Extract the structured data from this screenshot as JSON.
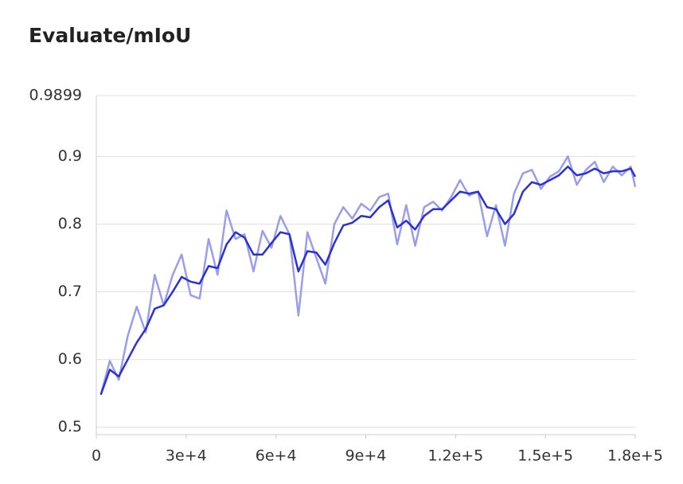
{
  "chart_data": {
    "type": "line",
    "title": "Evaluate/mIoU",
    "x": [
      1500,
      4500,
      7500,
      10500,
      13500,
      16500,
      19500,
      22500,
      25500,
      28500,
      31500,
      34500,
      37500,
      40500,
      43500,
      46500,
      49500,
      52500,
      55500,
      58500,
      61500,
      64500,
      67500,
      70500,
      73500,
      76500,
      79500,
      82500,
      85500,
      88500,
      91500,
      94500,
      97500,
      100500,
      103500,
      106500,
      109500,
      112500,
      115500,
      118500,
      121500,
      124500,
      127500,
      130500,
      133500,
      136500,
      139500,
      142500,
      145500,
      148500,
      151500,
      154500,
      157500,
      160500,
      163500,
      166500,
      169500,
      172500,
      175500,
      178500,
      180000
    ],
    "series": [
      {
        "color": "#9b9de9",
        "values": [
          0.548,
          0.598,
          0.57,
          0.635,
          0.678,
          0.64,
          0.725,
          0.68,
          0.725,
          0.755,
          0.695,
          0.69,
          0.778,
          0.725,
          0.82,
          0.778,
          0.785,
          0.73,
          0.79,
          0.765,
          0.812,
          0.785,
          0.665,
          0.788,
          0.75,
          0.712,
          0.8,
          0.825,
          0.808,
          0.83,
          0.82,
          0.84,
          0.845,
          0.77,
          0.828,
          0.768,
          0.825,
          0.833,
          0.82,
          0.84,
          0.865,
          0.842,
          0.848,
          0.782,
          0.828,
          0.768,
          0.845,
          0.875,
          0.88,
          0.852,
          0.87,
          0.878,
          0.9,
          0.858,
          0.88,
          0.892,
          0.862,
          0.885,
          0.872,
          0.885,
          0.855
        ]
      },
      {
        "color": "#2a32d6",
        "values": [
          0.548,
          0.585,
          0.575,
          0.6,
          0.625,
          0.645,
          0.675,
          0.68,
          0.7,
          0.722,
          0.715,
          0.712,
          0.738,
          0.735,
          0.77,
          0.788,
          0.78,
          0.755,
          0.755,
          0.772,
          0.788,
          0.785,
          0.73,
          0.76,
          0.758,
          0.74,
          0.772,
          0.798,
          0.802,
          0.812,
          0.81,
          0.825,
          0.835,
          0.795,
          0.805,
          0.792,
          0.812,
          0.822,
          0.822,
          0.835,
          0.848,
          0.845,
          0.848,
          0.825,
          0.822,
          0.8,
          0.815,
          0.848,
          0.862,
          0.858,
          0.865,
          0.872,
          0.885,
          0.872,
          0.875,
          0.882,
          0.875,
          0.878,
          0.878,
          0.882,
          0.87
        ]
      }
    ],
    "xlim": [
      0,
      180000
    ],
    "xticks": [
      0,
      {
        "value": 30000,
        "label": "3e+4"
      },
      {
        "value": 60000,
        "label": "6e+4"
      },
      {
        "value": 90000,
        "label": "9e+4"
      },
      {
        "value": 120000,
        "label": "1.2e+5"
      },
      {
        "value": 150000,
        "label": "1.5e+5"
      },
      {
        "value": 180000,
        "label": "1.8e+5"
      }
    ],
    "ylim": [
      0.489,
      0.9899
    ],
    "yticks": [
      0.5,
      0.6,
      0.7,
      0.8,
      0.9,
      0.9899
    ],
    "grid": true
  }
}
